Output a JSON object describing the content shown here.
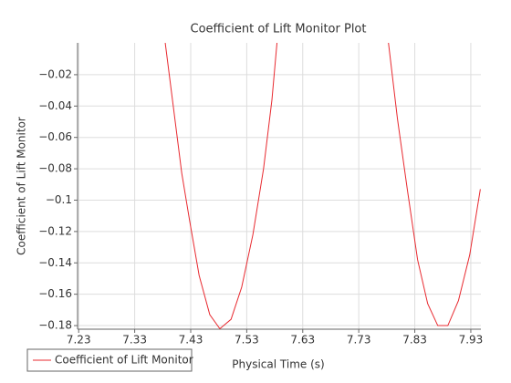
{
  "chart_data": {
    "type": "line",
    "title": "Coefficient of Lift Monitor Plot",
    "x_label": "Physical Time (s)",
    "y_label": "Coefficient of Lift Monitor",
    "x": [
      7.3845,
      7.414,
      7.428,
      7.445,
      7.464,
      7.482,
      7.502,
      7.521,
      7.541,
      7.56,
      7.575,
      7.584,
      null,
      7.783,
      7.799,
      7.817,
      7.835,
      7.853,
      7.871,
      7.889,
      7.908,
      7.928,
      7.947
    ],
    "series": [
      {
        "name": "Coefficient of Lift Monitor",
        "color": "#e8292f",
        "values": [
          0.0003,
          -0.0828,
          -0.113,
          -0.148,
          -0.173,
          -0.182,
          -0.176,
          -0.1555,
          -0.122,
          -0.08,
          -0.036,
          0.0003,
          null,
          0.0003,
          -0.048,
          -0.094,
          -0.138,
          -0.166,
          -0.18,
          -0.18,
          -0.164,
          -0.135,
          -0.093
        ]
      }
    ],
    "xlim": [
      7.228,
      7.948
    ],
    "ylim": [
      -0.1823,
      0.0003
    ],
    "xticks": [
      7.23,
      7.33,
      7.43,
      7.53,
      7.63,
      7.73,
      7.83,
      7.93
    ],
    "yticks": [
      {
        "value": -0.02,
        "label": "−0.02"
      },
      {
        "value": -0.04,
        "label": "−0.04"
      },
      {
        "value": -0.06,
        "label": "−0.06"
      },
      {
        "value": -0.08,
        "label": "−0.08"
      },
      {
        "value": -0.1,
        "label": "−0.1"
      },
      {
        "value": -0.12,
        "label": "−0.12"
      },
      {
        "value": -0.14,
        "label": "−0.14"
      },
      {
        "value": -0.16,
        "label": "−0.16"
      },
      {
        "value": -0.18,
        "label": "−0.18"
      }
    ],
    "grid": true,
    "legend": "bottom-left"
  }
}
